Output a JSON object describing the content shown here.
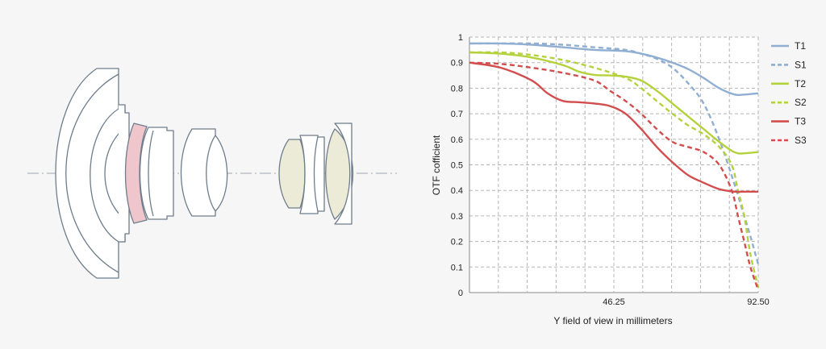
{
  "colors": {
    "background": "#f6f6f6",
    "plot_background": "#ffffff",
    "grid": "#b5b5b5",
    "lens_outline": "#6e7d8c",
    "lens_fill": "#ffffff",
    "lens_pink": "#efc6cb",
    "lens_cream": "#ecebd7",
    "optical_axis": "#9aa7b3",
    "T1": "#90aed2",
    "S1": "#90aed2",
    "T2": "#b4d23c",
    "S2": "#b4d23c",
    "T3": "#d24e4e",
    "S3": "#d24e4e"
  },
  "lens_diagram": {
    "name": "lens-cross-section"
  },
  "chart_data": {
    "type": "line",
    "title": "",
    "xlabel": "Y field of view in millimeters",
    "ylabel": "OTF cofficient",
    "xlim": [
      0,
      92.5
    ],
    "ylim": [
      0,
      1
    ],
    "x_ticks": [
      {
        "value": 46.25,
        "label": "46.25"
      },
      {
        "value": 92.5,
        "label": "92.50"
      }
    ],
    "y_ticks": [
      {
        "value": 0,
        "label": "0"
      },
      {
        "value": 0.1,
        "label": "0.1"
      },
      {
        "value": 0.2,
        "label": "0.2"
      },
      {
        "value": 0.3,
        "label": "0.3"
      },
      {
        "value": 0.4,
        "label": "0.4"
      },
      {
        "value": 0.5,
        "label": "0.5"
      },
      {
        "value": 0.6,
        "label": "0.6"
      },
      {
        "value": 0.7,
        "label": "0.7"
      },
      {
        "value": 0.8,
        "label": "0.8"
      },
      {
        "value": 0.9,
        "label": "0.9"
      },
      {
        "value": 1,
        "label": "1"
      }
    ],
    "grid": true,
    "legend": "right",
    "series": [
      {
        "name": "T1",
        "dashed": false,
        "color": "#90aed2",
        "x": [
          0,
          10,
          20,
          30,
          40,
          50,
          55,
          60,
          65,
          70,
          75,
          80,
          85,
          88,
          92.5
        ],
        "y": [
          0.975,
          0.975,
          0.97,
          0.96,
          0.95,
          0.945,
          0.935,
          0.92,
          0.9,
          0.875,
          0.84,
          0.8,
          0.775,
          0.775,
          0.78
        ]
      },
      {
        "name": "S1",
        "dashed": true,
        "color": "#90aed2",
        "x": [
          0,
          10,
          20,
          30,
          40,
          50,
          55,
          60,
          65,
          70,
          75,
          80,
          85,
          88,
          90,
          92.5
        ],
        "y": [
          0.975,
          0.975,
          0.975,
          0.97,
          0.96,
          0.95,
          0.935,
          0.915,
          0.88,
          0.82,
          0.74,
          0.6,
          0.42,
          0.3,
          0.22,
          0.11
        ]
      },
      {
        "name": "T2",
        "dashed": false,
        "color": "#b4d23c",
        "x": [
          0,
          10,
          20,
          30,
          35,
          40,
          45,
          50,
          55,
          60,
          65,
          70,
          75,
          80,
          84,
          86,
          88,
          92.5
        ],
        "y": [
          0.94,
          0.935,
          0.92,
          0.89,
          0.865,
          0.852,
          0.85,
          0.845,
          0.83,
          0.79,
          0.74,
          0.69,
          0.64,
          0.59,
          0.555,
          0.545,
          0.545,
          0.55
        ]
      },
      {
        "name": "S2",
        "dashed": true,
        "color": "#b4d23c",
        "x": [
          0,
          10,
          20,
          30,
          40,
          50,
          55,
          60,
          65,
          70,
          75,
          80,
          84,
          86,
          88,
          90,
          92.5
        ],
        "y": [
          0.94,
          0.94,
          0.93,
          0.91,
          0.88,
          0.84,
          0.8,
          0.75,
          0.7,
          0.655,
          0.62,
          0.57,
          0.5,
          0.4,
          0.3,
          0.15,
          0.02
        ]
      },
      {
        "name": "T3",
        "dashed": false,
        "color": "#d24e4e",
        "x": [
          0,
          10,
          20,
          25,
          30,
          35,
          40,
          45,
          50,
          55,
          60,
          65,
          70,
          75,
          80,
          85,
          88,
          92.5
        ],
        "y": [
          0.9,
          0.88,
          0.83,
          0.78,
          0.75,
          0.745,
          0.74,
          0.73,
          0.7,
          0.64,
          0.57,
          0.51,
          0.46,
          0.43,
          0.405,
          0.395,
          0.395,
          0.395
        ]
      },
      {
        "name": "S3",
        "dashed": true,
        "color": "#d24e4e",
        "x": [
          0,
          10,
          20,
          30,
          40,
          45,
          50,
          55,
          60,
          65,
          70,
          75,
          80,
          84,
          86,
          88,
          90,
          92.5
        ],
        "y": [
          0.9,
          0.895,
          0.88,
          0.86,
          0.83,
          0.79,
          0.75,
          0.7,
          0.64,
          0.59,
          0.57,
          0.55,
          0.5,
          0.4,
          0.3,
          0.2,
          0.1,
          0.01
        ]
      }
    ]
  }
}
